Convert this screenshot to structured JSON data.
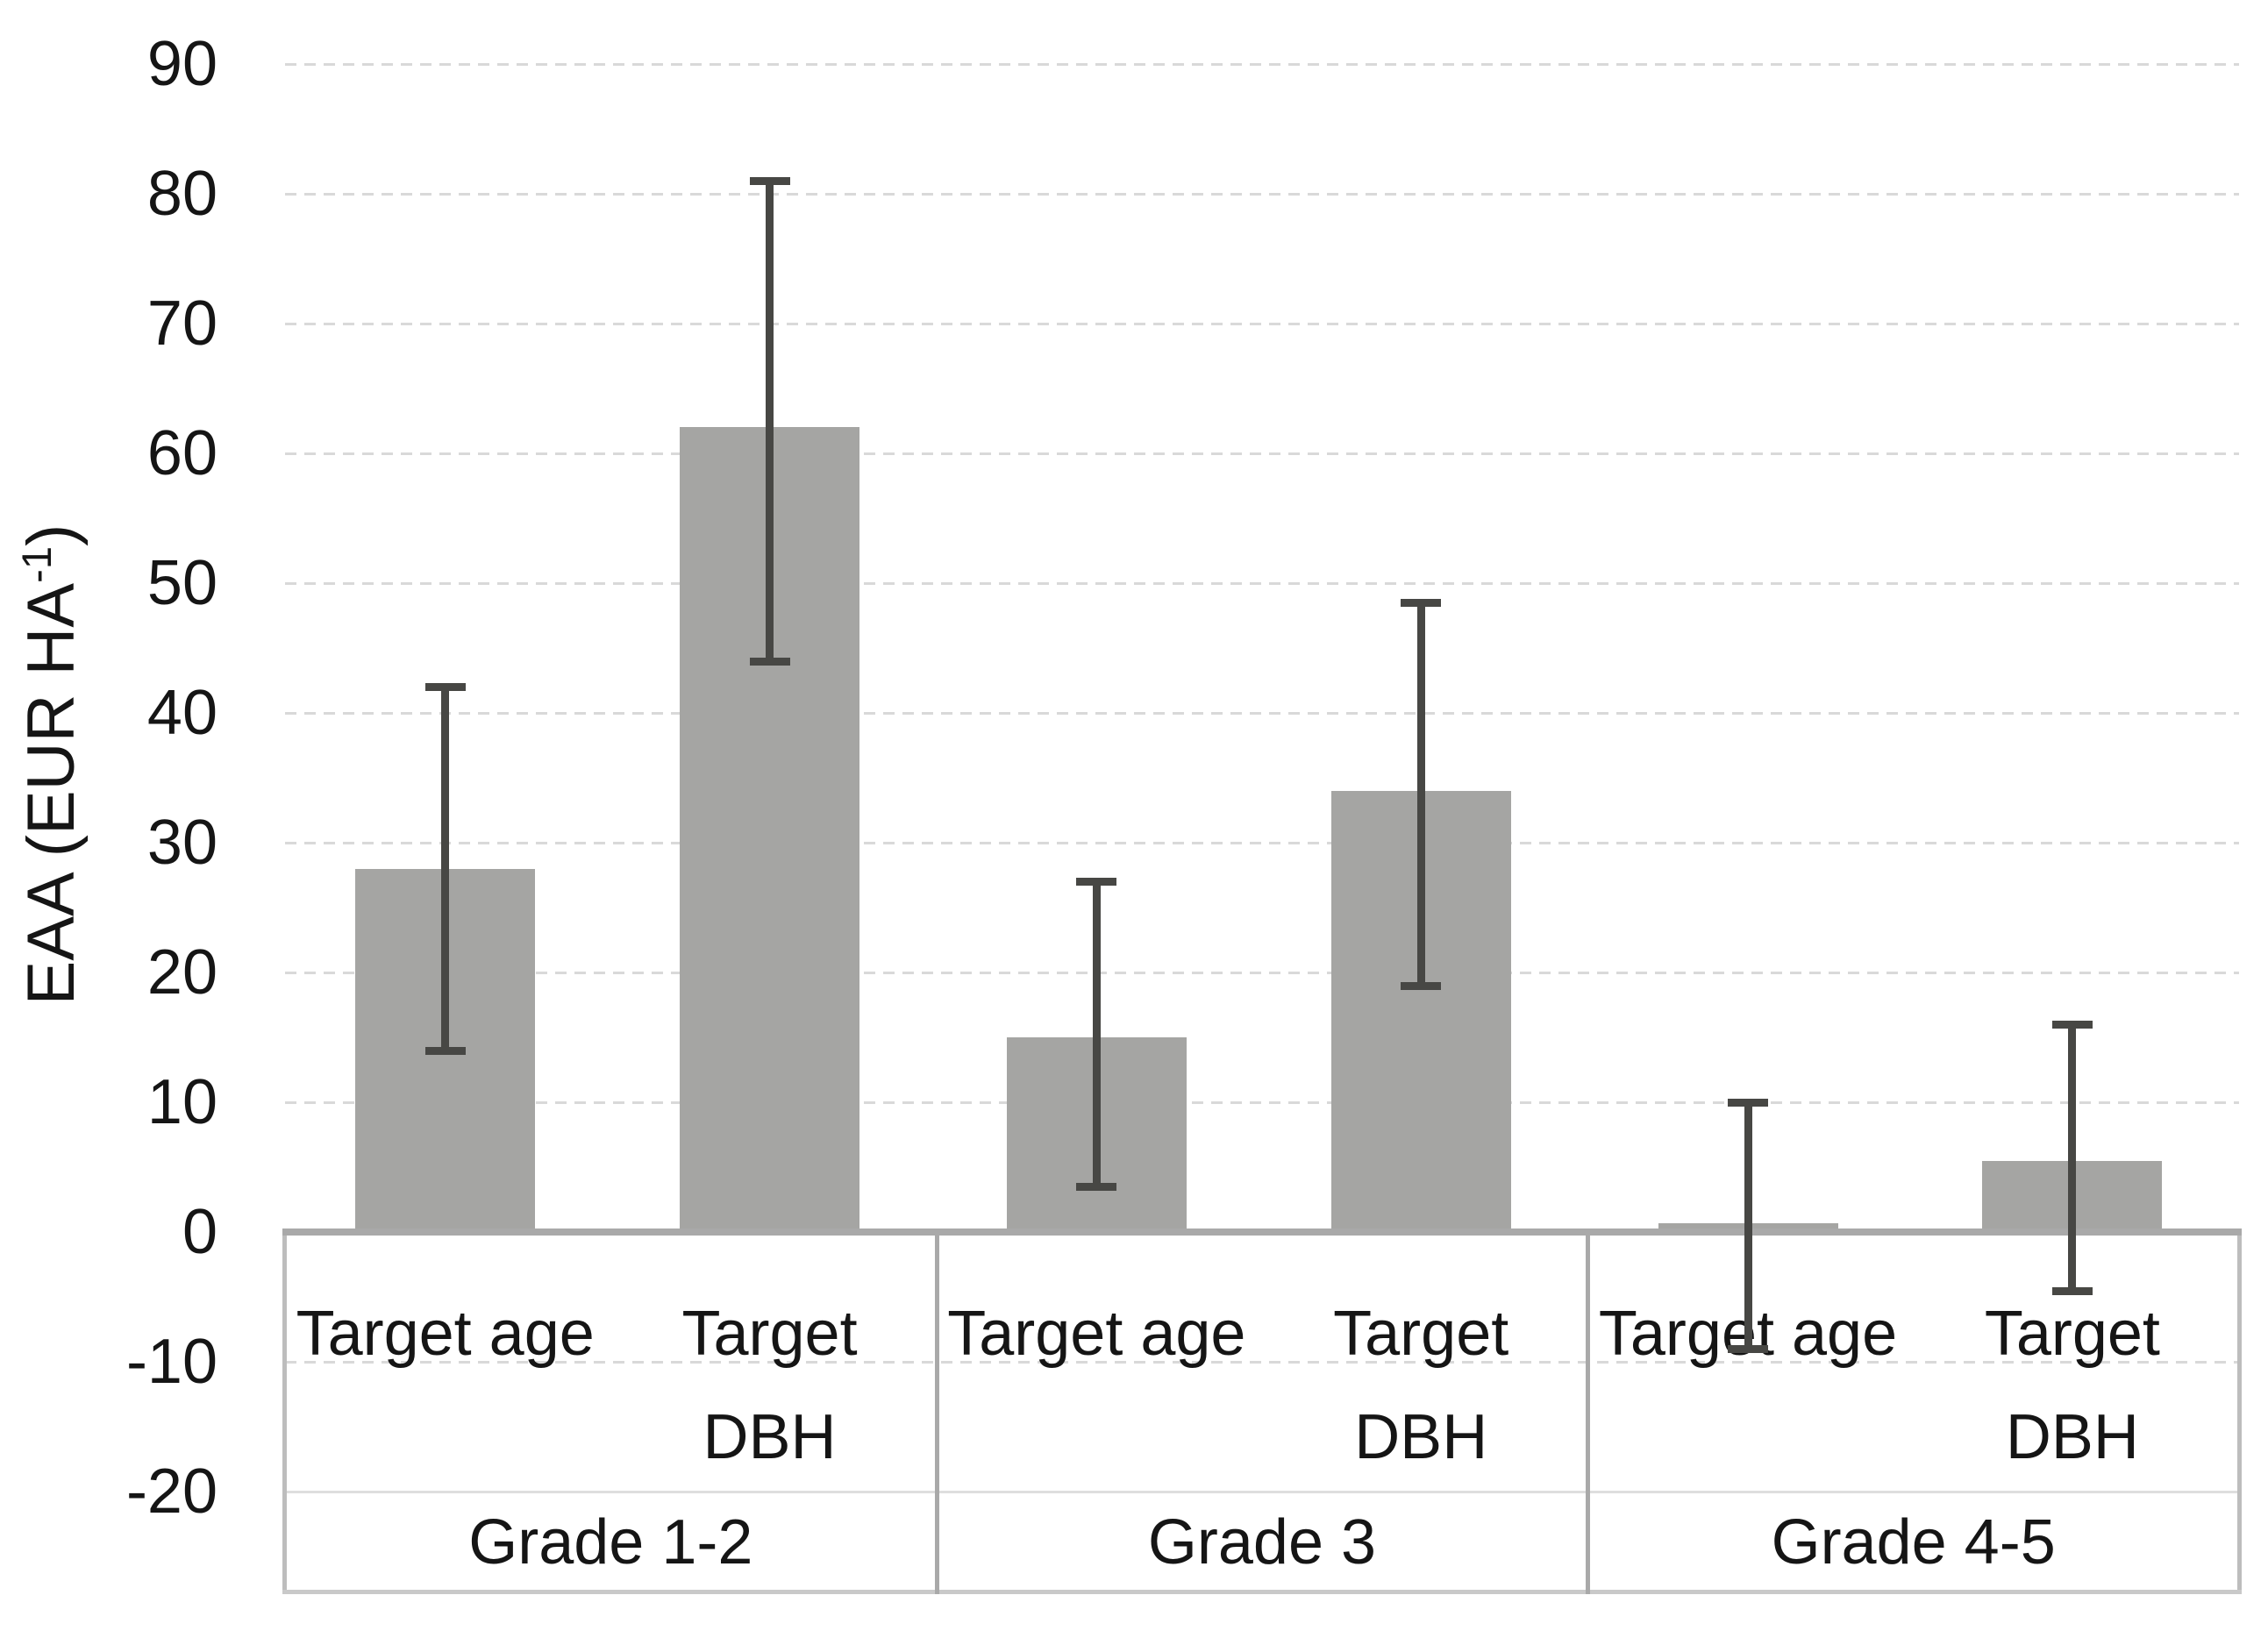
{
  "chart_data": {
    "type": "bar",
    "title": "",
    "ylabel": "EAA (EUR HA⁻¹)",
    "ylabel_parts": {
      "pre": "EAA (EUR HA",
      "sup": "-1",
      "post": ")"
    },
    "ylim": [
      -20,
      90
    ],
    "y_ticks": [
      90,
      80,
      70,
      60,
      50,
      40,
      30,
      20,
      10,
      0,
      -10,
      -20
    ],
    "grid": true,
    "legend": "none",
    "groups": [
      "Grade 1-2",
      "Grade 3",
      "Grade 4-5"
    ],
    "condition_labels": [
      "Target age",
      "Target DBH"
    ],
    "bars": [
      {
        "group": "Grade 1-2",
        "label": "Target age",
        "label_lines": [
          "Target age"
        ],
        "value": 28,
        "err_lo": 14,
        "err_hi": 42
      },
      {
        "group": "Grade 1-2",
        "label": "Target DBH",
        "label_lines": [
          "Target",
          "DBH"
        ],
        "value": 62,
        "err_lo": 44,
        "err_hi": 81
      },
      {
        "group": "Grade 3",
        "label": "Target age",
        "label_lines": [
          "Target age"
        ],
        "value": 15,
        "err_lo": 3.5,
        "err_hi": 27
      },
      {
        "group": "Grade 3",
        "label": "Target DBH",
        "label_lines": [
          "Target",
          "DBH"
        ],
        "value": 34,
        "err_lo": 19,
        "err_hi": 48.5
      },
      {
        "group": "Grade 4-5",
        "label": "Target age",
        "label_lines": [
          "Target age"
        ],
        "value": 0.7,
        "err_lo": -9,
        "err_hi": 10
      },
      {
        "group": "Grade 4-5",
        "label": "Target DBH",
        "label_lines": [
          "Target",
          "DBH"
        ],
        "value": 5.5,
        "err_lo": -4.5,
        "err_hi": 16
      }
    ],
    "colors": {
      "bar_fill": "#a5a5a3",
      "error_bar": "#474744",
      "gridline": "#d9d9d9",
      "axis_line": "#a9a9a9",
      "box_border": "#bdbdbd",
      "text": "#151515",
      "background": "#ffffff"
    }
  }
}
